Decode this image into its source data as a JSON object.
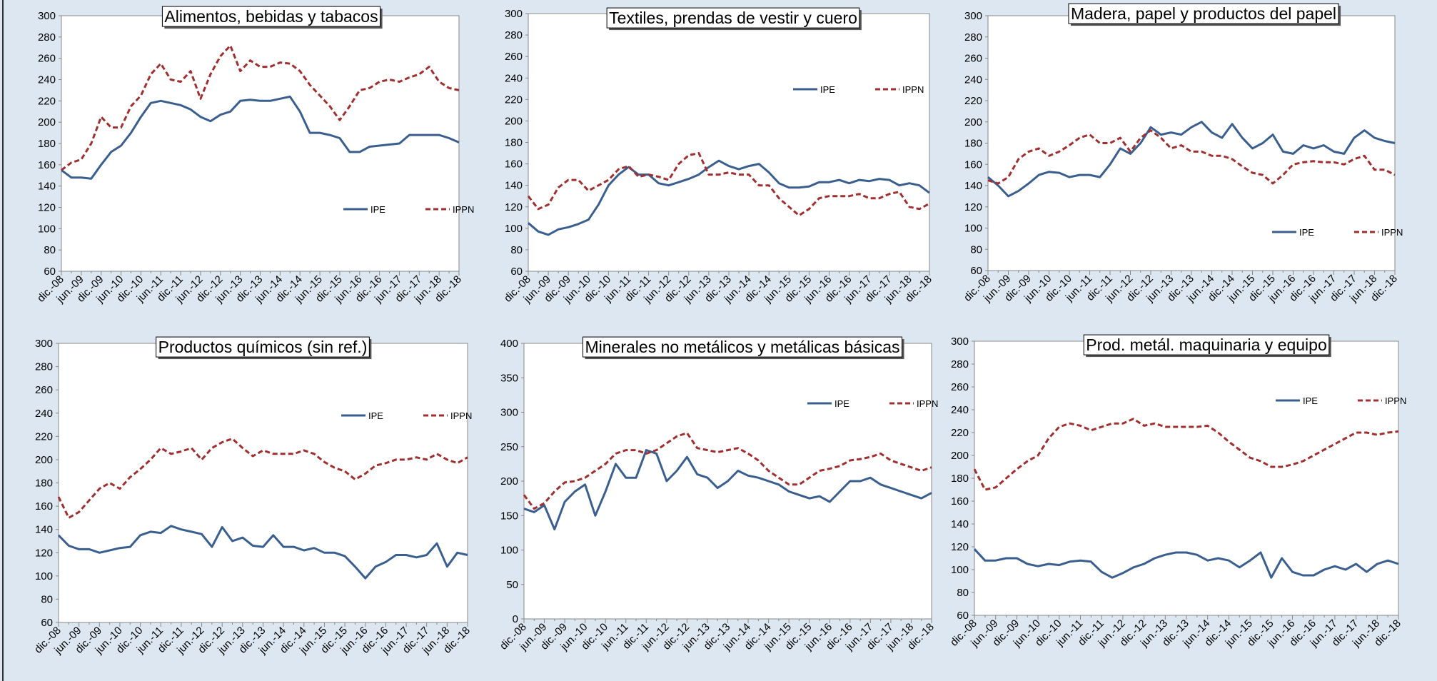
{
  "chart_data": [
    {
      "type": "line",
      "title": "Alimentos, bebidas y tabacos",
      "categories": [
        "dic.-08",
        null,
        "jun.-09",
        null,
        "dic.-09",
        null,
        "jun.-10",
        null,
        "dic.-10",
        null,
        "jun.-11",
        null,
        "dic.-11",
        null,
        "jun.-12",
        null,
        "dic.-12",
        null,
        "jun.-13",
        null,
        "dic.-13",
        null,
        "jun.-14",
        null,
        "dic.-14",
        null,
        "jun.-15",
        null,
        "dic.-15",
        null,
        "jun.-16",
        null,
        "dic.-16",
        null,
        "jun.-17",
        null,
        "dic.-17",
        null,
        "jun.-18",
        null,
        "dic.-18"
      ],
      "series": [
        {
          "name": "IPE",
          "color": "#3a5f8f",
          "values": [
            155,
            148,
            148,
            147,
            160,
            172,
            178,
            190,
            205,
            218,
            220,
            218,
            216,
            212,
            205,
            201,
            207,
            210,
            220,
            221,
            220,
            220,
            222,
            224,
            210,
            190,
            190,
            188,
            185,
            172,
            172,
            177,
            178,
            179,
            180,
            188,
            188,
            188,
            188,
            185,
            181
          ]
        },
        {
          "name": "IPPN",
          "color": "#a03030",
          "values": [
            155,
            162,
            165,
            180,
            205,
            195,
            195,
            215,
            225,
            245,
            255,
            240,
            238,
            248,
            222,
            245,
            262,
            272,
            248,
            258,
            252,
            252,
            256,
            255,
            248,
            235,
            225,
            215,
            202,
            215,
            230,
            232,
            238,
            240,
            238,
            242,
            245,
            252,
            238,
            232,
            230
          ]
        }
      ],
      "ylim": [
        60,
        300
      ],
      "yticks": [
        60,
        80,
        100,
        120,
        140,
        160,
        180,
        200,
        220,
        240,
        260,
        280,
        300
      ]
    },
    {
      "type": "line",
      "title": "Textiles, prendas de vestir y cuero",
      "categories": [
        "dic.-08",
        null,
        "jun.-09",
        null,
        "dic.-09",
        null,
        "jun.-10",
        null,
        "dic.-10",
        null,
        "jun.-11",
        null,
        "dic.-11",
        null,
        "jun.-12",
        null,
        "dic.-12",
        null,
        "jun.-13",
        null,
        "dic.-13",
        null,
        "jun.-14",
        null,
        "dic.-14",
        null,
        "jun.-15",
        null,
        "dic.-15",
        null,
        "jun.-16",
        null,
        "dic.-16",
        null,
        "jun.-17",
        null,
        "dic.-17",
        null,
        "jun.-18",
        null,
        "dic.-18"
      ],
      "series": [
        {
          "name": "IPE",
          "color": "#3a5f8f",
          "values": [
            105,
            97,
            94,
            99,
            101,
            104,
            108,
            122,
            140,
            150,
            157,
            150,
            150,
            142,
            140,
            143,
            146,
            150,
            157,
            163,
            158,
            155,
            158,
            160,
            152,
            142,
            138,
            138,
            139,
            143,
            143,
            145,
            142,
            145,
            144,
            146,
            145,
            140,
            142,
            140,
            133
          ]
        },
        {
          "name": "IPPN",
          "color": "#a03030",
          "values": [
            130,
            118,
            122,
            138,
            145,
            145,
            135,
            140,
            145,
            155,
            158,
            148,
            150,
            148,
            145,
            160,
            168,
            170,
            150,
            150,
            152,
            150,
            150,
            140,
            140,
            128,
            120,
            112,
            118,
            128,
            130,
            130,
            130,
            132,
            128,
            128,
            132,
            134,
            120,
            118,
            123
          ]
        }
      ],
      "ylim": [
        60,
        300
      ],
      "yticks": [
        60,
        80,
        100,
        120,
        140,
        160,
        180,
        200,
        220,
        240,
        260,
        280,
        300
      ]
    },
    {
      "type": "line",
      "title": "Madera, papel y productos del papel",
      "categories": [
        "dic.-08",
        null,
        "jun.-09",
        null,
        "dic.-09",
        null,
        "jun.-10",
        null,
        "dic.-10",
        null,
        "jun.-11",
        null,
        "dic.-11",
        null,
        "jun.-12",
        null,
        "dic.-12",
        null,
        "jun.-13",
        null,
        "dic.-13",
        null,
        "jun.-14",
        null,
        "dic.-14",
        null,
        "jun.-15",
        null,
        "dic.-15",
        null,
        "jun.-16",
        null,
        "dic.-16",
        null,
        "jun.-17",
        null,
        "dic.-17",
        null,
        "jun.-18",
        null,
        "dic.-18"
      ],
      "series": [
        {
          "name": "IPE",
          "color": "#3a5f8f",
          "values": [
            148,
            140,
            130,
            135,
            142,
            150,
            153,
            152,
            148,
            150,
            150,
            148,
            160,
            175,
            170,
            180,
            195,
            188,
            190,
            188,
            195,
            200,
            190,
            185,
            198,
            185,
            175,
            180,
            188,
            172,
            170,
            178,
            175,
            178,
            172,
            170,
            185,
            192,
            185,
            182,
            180
          ]
        },
        {
          "name": "IPPN",
          "color": "#a03030",
          "values": [
            145,
            142,
            148,
            165,
            172,
            175,
            168,
            172,
            178,
            185,
            188,
            180,
            180,
            185,
            172,
            185,
            192,
            185,
            175,
            178,
            172,
            172,
            168,
            168,
            165,
            158,
            152,
            150,
            142,
            150,
            160,
            162,
            163,
            162,
            162,
            160,
            165,
            168,
            155,
            155,
            150
          ]
        }
      ],
      "ylim": [
        60,
        300
      ],
      "yticks": [
        60,
        80,
        100,
        120,
        140,
        160,
        180,
        200,
        220,
        240,
        260,
        280,
        300
      ]
    },
    {
      "type": "line",
      "title": "Productos químicos (sin ref.)",
      "categories": [
        "dic.-08",
        null,
        "jun.-09",
        null,
        "dic.-09",
        null,
        "jun.-10",
        null,
        "dic.-10",
        null,
        "jun.-11",
        null,
        "dic.-11",
        null,
        "jun.-12",
        null,
        "dic.-12",
        null,
        "jun.-13",
        null,
        "dic.-13",
        null,
        "jun.-14",
        null,
        "dic.-14",
        null,
        "jun.-15",
        null,
        "dic.-15",
        null,
        "jun.-16",
        null,
        "dic.-16",
        null,
        "jun.-17",
        null,
        "dic.-17",
        null,
        "jun.-18",
        null,
        "dic.-18"
      ],
      "series": [
        {
          "name": "IPE",
          "color": "#3a5f8f",
          "values": [
            135,
            126,
            123,
            123,
            120,
            122,
            124,
            125,
            135,
            138,
            137,
            143,
            140,
            138,
            136,
            125,
            142,
            130,
            133,
            126,
            125,
            135,
            125,
            125,
            122,
            124,
            120,
            120,
            117,
            108,
            98,
            108,
            112,
            118,
            118,
            116,
            118,
            128,
            108,
            120,
            118
          ]
        },
        {
          "name": "IPPN",
          "color": "#a03030",
          "values": [
            168,
            150,
            155,
            165,
            175,
            180,
            175,
            185,
            192,
            200,
            210,
            205,
            207,
            210,
            200,
            210,
            215,
            218,
            210,
            203,
            208,
            205,
            205,
            205,
            208,
            205,
            198,
            193,
            190,
            183,
            188,
            195,
            197,
            200,
            200,
            202,
            200,
            205,
            200,
            197,
            202
          ]
        }
      ],
      "ylim": [
        60,
        300
      ],
      "yticks": [
        60,
        80,
        100,
        120,
        140,
        160,
        180,
        200,
        220,
        240,
        260,
        280,
        300
      ]
    },
    {
      "type": "line",
      "title": "Minerales no metálicos y metálicas básicas",
      "categories": [
        "dic.-08",
        null,
        "jun.-09",
        null,
        "dic.-09",
        null,
        "jun.-10",
        null,
        "dic.-10",
        null,
        "jun.-11",
        null,
        "dic.-11",
        null,
        "jun.-12",
        null,
        "dic.-12",
        null,
        "jun.-13",
        null,
        "dic.-13",
        null,
        "jun.-14",
        null,
        "dic.-14",
        null,
        "jun.-15",
        null,
        "dic.-15",
        null,
        "jun.-16",
        null,
        "dic.-16",
        null,
        "jun.-17",
        null,
        "dic.-17",
        null,
        "jun.-18",
        null,
        "dic.-18"
      ],
      "series": [
        {
          "name": "IPE",
          "color": "#3a5f8f",
          "values": [
            160,
            155,
            165,
            130,
            170,
            185,
            195,
            150,
            185,
            225,
            205,
            205,
            245,
            240,
            200,
            215,
            235,
            210,
            205,
            190,
            200,
            215,
            208,
            205,
            200,
            195,
            185,
            180,
            175,
            178,
            170,
            185,
            200,
            200,
            205,
            195,
            190,
            185,
            180,
            175,
            183
          ]
        },
        {
          "name": "IPPN",
          "color": "#a03030",
          "values": [
            180,
            160,
            168,
            185,
            198,
            200,
            205,
            215,
            225,
            240,
            245,
            245,
            240,
            245,
            255,
            265,
            270,
            248,
            245,
            242,
            245,
            248,
            240,
            230,
            215,
            205,
            195,
            195,
            205,
            215,
            218,
            222,
            230,
            232,
            235,
            240,
            230,
            225,
            220,
            215,
            220
          ]
        }
      ],
      "ylim": [
        0,
        400
      ],
      "yticks": [
        0,
        50,
        100,
        150,
        200,
        250,
        300,
        350,
        400
      ]
    },
    {
      "type": "line",
      "title": "Prod. metál.  maquinaria y equipo",
      "categories": [
        "dic.-08",
        null,
        "jun.-09",
        null,
        "dic.-09",
        null,
        "jun.-10",
        null,
        "dic.-10",
        null,
        "jun.-11",
        null,
        "dic.-11",
        null,
        "jun.-12",
        null,
        "dic.-12",
        null,
        "jun.-13",
        null,
        "dic.-13",
        null,
        "jun.-14",
        null,
        "dic.-14",
        null,
        "jun.-15",
        null,
        "dic.-15",
        null,
        "jun.-16",
        null,
        "dic.-16",
        null,
        "jun.-17",
        null,
        "dic.-17",
        null,
        "jun.-18",
        null,
        "dic.-18"
      ],
      "series": [
        {
          "name": "IPE",
          "color": "#3a5f8f",
          "values": [
            118,
            108,
            108,
            110,
            110,
            105,
            103,
            105,
            104,
            107,
            108,
            107,
            98,
            93,
            97,
            102,
            105,
            110,
            113,
            115,
            115,
            113,
            108,
            110,
            108,
            102,
            108,
            115,
            93,
            110,
            98,
            95,
            95,
            100,
            103,
            100,
            105,
            98,
            105,
            108,
            105
          ]
        },
        {
          "name": "IPPN",
          "color": "#a03030",
          "values": [
            188,
            170,
            172,
            180,
            188,
            195,
            200,
            215,
            225,
            228,
            226,
            222,
            225,
            228,
            228,
            232,
            226,
            228,
            225,
            225,
            225,
            225,
            226,
            220,
            212,
            205,
            198,
            195,
            190,
            190,
            192,
            195,
            200,
            205,
            210,
            215,
            220,
            220,
            218,
            220,
            221
          ]
        }
      ],
      "ylim": [
        60,
        300
      ],
      "yticks": [
        60,
        80,
        100,
        120,
        140,
        160,
        180,
        200,
        220,
        240,
        260,
        280,
        300
      ]
    }
  ]
}
